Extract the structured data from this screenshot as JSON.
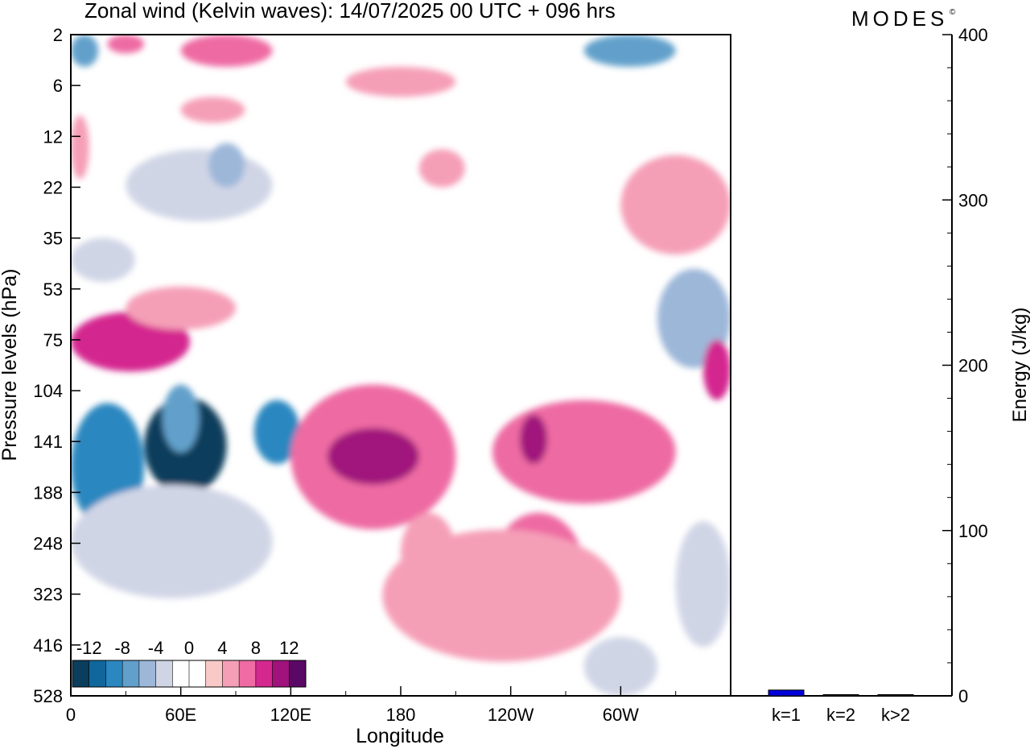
{
  "title": "Zonal wind (Kelvin waves):  14/07/2025  00 UTC  + 096 hrs",
  "logo_text": "MODES",
  "logo_mark": "©",
  "chart_data": [
    {
      "type": "heatmap",
      "title": "Zonal wind (Kelvin waves):  14/07/2025  00 UTC  + 096 hrs",
      "xlabel": "Longitude",
      "ylabel": "Pressure levels (hPa)",
      "x_ticks": [
        "0",
        "60E",
        "120E",
        "180",
        "120W",
        "60W"
      ],
      "y_ticks": [
        "2",
        "6",
        "12",
        "22",
        "35",
        "53",
        "75",
        "104",
        "141",
        "188",
        "248",
        "323",
        "416",
        "528"
      ],
      "colorbar": {
        "tick_labels": [
          "-12",
          "-8",
          "-4",
          "0",
          "4",
          "8",
          "12"
        ],
        "colors": [
          "#0b3d5c",
          "#10679c",
          "#2a87c0",
          "#62a0cb",
          "#9db7d9",
          "#d0d5e6",
          "#ffffff",
          "#ffffff",
          "#f8c9c6",
          "#f59fb7",
          "#ee6ba3",
          "#d4288f",
          "#a0127c",
          "#5a0866"
        ]
      },
      "blobs": [
        {
          "lon": 0,
          "lon2": 15,
          "p": 2,
          "p2": 4,
          "value": -8
        },
        {
          "lon": 20,
          "lon2": 40,
          "p": 2,
          "p2": 3,
          "value": 6
        },
        {
          "lon": 60,
          "lon2": 110,
          "p": 2,
          "p2": 4,
          "value": 6
        },
        {
          "lon": 150,
          "lon2": 210,
          "p": 4,
          "p2": 7,
          "value": 5
        },
        {
          "lon": 280,
          "lon2": 330,
          "p": 2,
          "p2": 4,
          "value": -8
        },
        {
          "lon": 60,
          "lon2": 95,
          "p": 7,
          "p2": 10,
          "value": 4
        },
        {
          "lon": 0,
          "lon2": 10,
          "p": 9,
          "p2": 20,
          "value": 4
        },
        {
          "lon": 30,
          "lon2": 110,
          "p": 14,
          "p2": 30,
          "value": -3
        },
        {
          "lon": 75,
          "lon2": 95,
          "p": 13,
          "p2": 22,
          "value": -6
        },
        {
          "lon": 190,
          "lon2": 215,
          "p": 14,
          "p2": 22,
          "value": 4
        },
        {
          "lon": 300,
          "lon2": 360,
          "p": 15,
          "p2": 40,
          "value": 4
        },
        {
          "lon": 0,
          "lon2": 35,
          "p": 35,
          "p2": 50,
          "value": -4
        },
        {
          "lon": 320,
          "lon2": 360,
          "p": 45,
          "p2": 90,
          "value": -5
        },
        {
          "lon": 0,
          "lon2": 65,
          "p": 62,
          "p2": 92,
          "value": 8
        },
        {
          "lon": 30,
          "lon2": 90,
          "p": 52,
          "p2": 70,
          "value": 4
        },
        {
          "lon": 0,
          "lon2": 40,
          "p": 112,
          "p2": 230,
          "value": -9
        },
        {
          "lon": 40,
          "lon2": 85,
          "p": 108,
          "p2": 190,
          "value": -14
        },
        {
          "lon": 50,
          "lon2": 70,
          "p": 100,
          "p2": 150,
          "value": -8
        },
        {
          "lon": 100,
          "lon2": 125,
          "p": 110,
          "p2": 160,
          "value": -9
        },
        {
          "lon": 0,
          "lon2": 110,
          "p": 180,
          "p2": 330,
          "value": -4
        },
        {
          "lon": 120,
          "lon2": 210,
          "p": 100,
          "p2": 230,
          "value": 7
        },
        {
          "lon": 140,
          "lon2": 190,
          "p": 130,
          "p2": 180,
          "value": 10
        },
        {
          "lon": 230,
          "lon2": 330,
          "p": 110,
          "p2": 200,
          "value": 7
        },
        {
          "lon": 245,
          "lon2": 260,
          "p": 120,
          "p2": 160,
          "value": 10
        },
        {
          "lon": 230,
          "lon2": 280,
          "p": 210,
          "p2": 380,
          "value": 7
        },
        {
          "lon": 180,
          "lon2": 210,
          "p": 210,
          "p2": 320,
          "value": 5
        },
        {
          "lon": 170,
          "lon2": 300,
          "p": 230,
          "p2": 450,
          "value": 4
        },
        {
          "lon": 345,
          "lon2": 360,
          "p": 75,
          "p2": 110,
          "value": 8
        },
        {
          "lon": 330,
          "lon2": 360,
          "p": 220,
          "p2": 420,
          "value": -3
        },
        {
          "lon": 280,
          "lon2": 320,
          "p": 400,
          "p2": 528,
          "value": -3
        }
      ]
    },
    {
      "type": "bar",
      "categories": [
        "k=1",
        "k=2",
        "k>2"
      ],
      "values": [
        3.5,
        0.4,
        0.4
      ],
      "ylabel": "Energy (J/kg)",
      "ylim": [
        0,
        400
      ],
      "y_ticks": [
        "0",
        "100",
        "200",
        "300",
        "400"
      ],
      "bar_colors": [
        "#0000dd",
        "#000000",
        "#000000"
      ]
    }
  ]
}
